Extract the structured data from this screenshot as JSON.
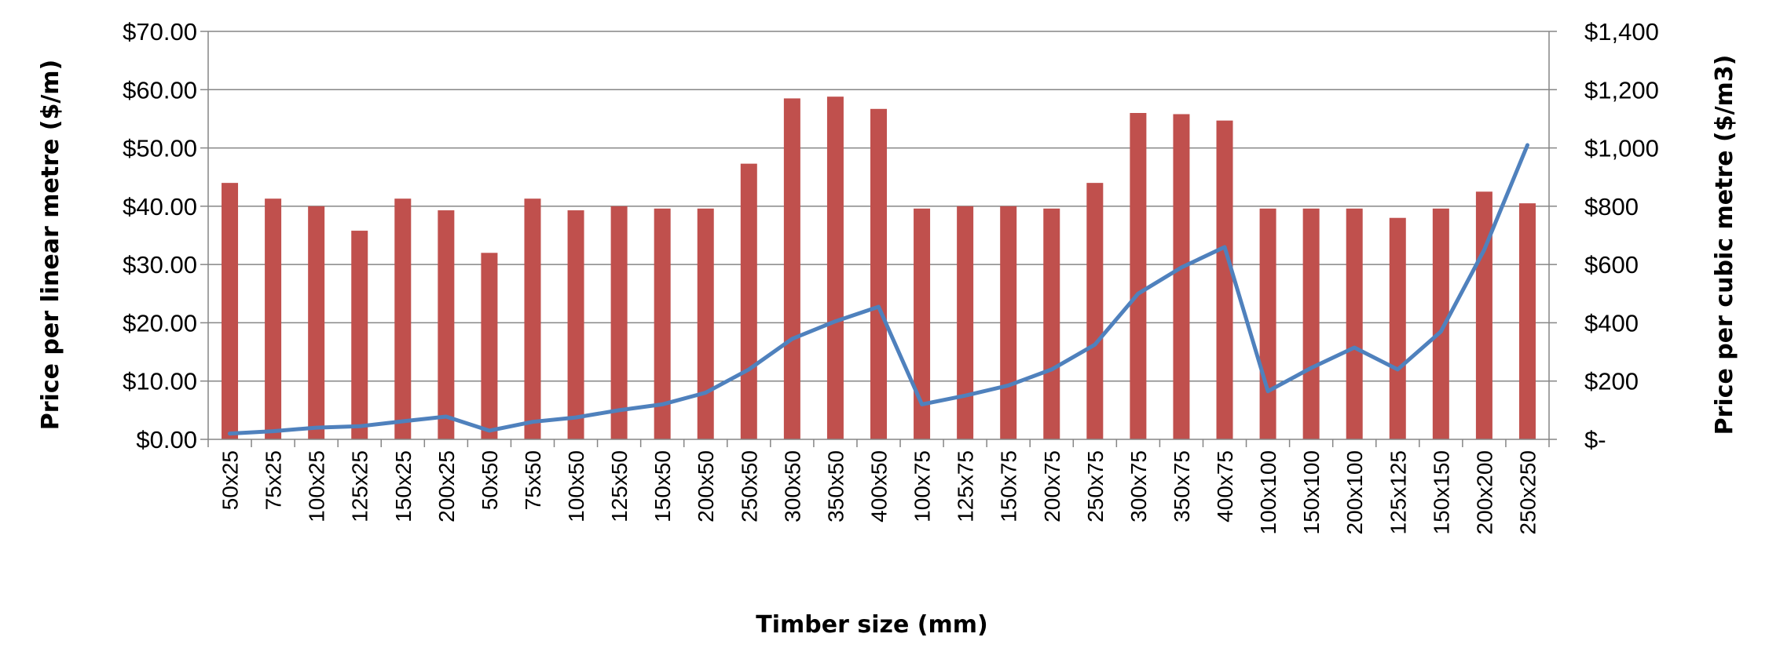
{
  "chart_data": {
    "type": "bar",
    "title": "",
    "xlabel": "Timber size (mm)",
    "ylabel_left": "Price per linear metre ($/m)",
    "ylabel_right": "Price per cubic metre ($/m3)",
    "categories": [
      "50x25",
      "75x25",
      "100x25",
      "125x25",
      "150x25",
      "200x25",
      "50x50",
      "75x50",
      "100x50",
      "125x50",
      "150x50",
      "200x50",
      "250x50",
      "300x50",
      "350x50",
      "400x50",
      "100x75",
      "125x75",
      "150x75",
      "200x75",
      "250x75",
      "300x75",
      "350x75",
      "400x75",
      "100x100",
      "150x100",
      "200x100",
      "125x125",
      "150x150",
      "200x200",
      "250x250"
    ],
    "ylim_left": [
      0,
      70
    ],
    "ylim_right": [
      0,
      1400
    ],
    "yticks_left": [
      "$0.00",
      "$10.00",
      "$20.00",
      "$30.00",
      "$40.00",
      "$50.00",
      "$60.00",
      "$70.00"
    ],
    "yticks_right": [
      "$-",
      "$200",
      "$400",
      "$600",
      "$800",
      "$1,000",
      "$1,200",
      "$1,400"
    ],
    "grid": true,
    "series": [
      {
        "type": "bar",
        "axis": "left",
        "color": "#C0504D",
        "values": [
          44.0,
          41.3,
          40.0,
          35.8,
          41.3,
          39.3,
          32.0,
          41.3,
          39.3,
          40.0,
          39.6,
          39.6,
          47.3,
          58.5,
          58.8,
          56.7,
          39.6,
          40.0,
          40.0,
          39.6,
          44.0,
          56.0,
          55.8,
          54.7,
          39.6,
          39.6,
          39.6,
          38.0,
          39.6,
          42.5,
          40.5
        ]
      },
      {
        "type": "line",
        "axis": "right",
        "color": "#4F81BD",
        "values": [
          20,
          28,
          40,
          45,
          62,
          78,
          30,
          60,
          75,
          100,
          120,
          160,
          240,
          345,
          405,
          455,
          120,
          150,
          185,
          240,
          325,
          500,
          590,
          660,
          165,
          245,
          315,
          240,
          370,
          650,
          1010
        ]
      }
    ]
  }
}
